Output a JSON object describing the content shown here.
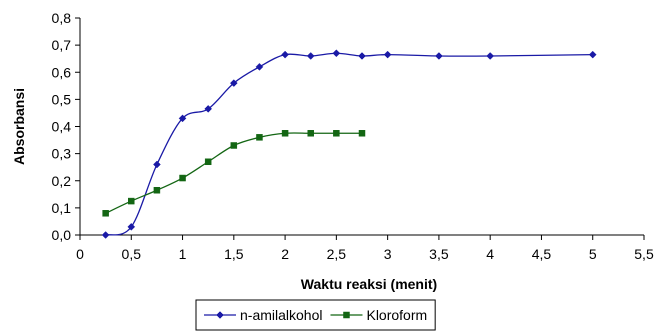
{
  "chart_data": {
    "type": "line",
    "xlabel": "Waktu reaksi (menit)",
    "ylabel": "Absorbansi",
    "xlim": [
      0,
      5.5
    ],
    "ylim": [
      0,
      0.8
    ],
    "xticks": [
      "0",
      "0,5",
      "1",
      "1,5",
      "2",
      "2,5",
      "3",
      "3,5",
      "4",
      "4,5",
      "5",
      "5,5"
    ],
    "yticks": [
      "0,0",
      "0,1",
      "0,2",
      "0,3",
      "0,4",
      "0,5",
      "0,6",
      "0,7",
      "0,8"
    ],
    "grid": false,
    "legend_position": "bottom",
    "series": [
      {
        "name": "n-amilalkohol",
        "color": "#1a1aa6",
        "marker": "diamond",
        "x": [
          0.25,
          0.5,
          0.75,
          1.0,
          1.25,
          1.5,
          1.75,
          2.0,
          2.25,
          2.5,
          2.75,
          3.0,
          3.5,
          4.0,
          5.0
        ],
        "y": [
          0.0,
          0.03,
          0.26,
          0.43,
          0.465,
          0.56,
          0.62,
          0.665,
          0.66,
          0.67,
          0.66,
          0.665,
          0.66,
          0.66,
          0.665
        ]
      },
      {
        "name": "Kloroform",
        "color": "#136613",
        "marker": "square",
        "x": [
          0.25,
          0.5,
          0.75,
          1.0,
          1.25,
          1.5,
          1.75,
          2.0,
          2.25,
          2.5,
          2.75
        ],
        "y": [
          0.08,
          0.125,
          0.165,
          0.21,
          0.27,
          0.33,
          0.36,
          0.375,
          0.375,
          0.375,
          0.375
        ]
      }
    ]
  }
}
